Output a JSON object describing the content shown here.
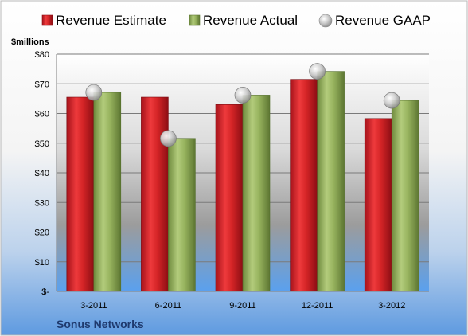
{
  "chart_data": {
    "type": "bar",
    "ylabel": "$millions",
    "categories": [
      "3-2011",
      "6-2011",
      "9-2011",
      "12-2011",
      "3-2012"
    ],
    "ylim": [
      0,
      80
    ],
    "yticks": [
      {
        "value": 0,
        "label": "$-"
      },
      {
        "value": 10,
        "label": "$10"
      },
      {
        "value": 20,
        "label": "$20"
      },
      {
        "value": 30,
        "label": "$30"
      },
      {
        "value": 40,
        "label": "$40"
      },
      {
        "value": 50,
        "label": "$50"
      },
      {
        "value": 60,
        "label": "$60"
      },
      {
        "value": 70,
        "label": "$70"
      },
      {
        "value": 80,
        "label": "$80"
      }
    ],
    "series": [
      {
        "name": "Revenue Estimate",
        "kind": "bar",
        "color": "#d42426",
        "values": [
          65.5,
          65.5,
          63,
          71.5,
          58.3
        ]
      },
      {
        "name": "Revenue Actual",
        "kind": "bar",
        "color": "#8fad57",
        "values": [
          67.1,
          51.6,
          66.2,
          74.2,
          64.4
        ]
      },
      {
        "name": "Revenue GAAP",
        "kind": "marker",
        "color": "#c0c0c0",
        "values": [
          67.1,
          51.6,
          66.2,
          74.2,
          64.4
        ]
      }
    ],
    "grid": true,
    "legend_position": "top",
    "footer": "Sonus Networks"
  }
}
